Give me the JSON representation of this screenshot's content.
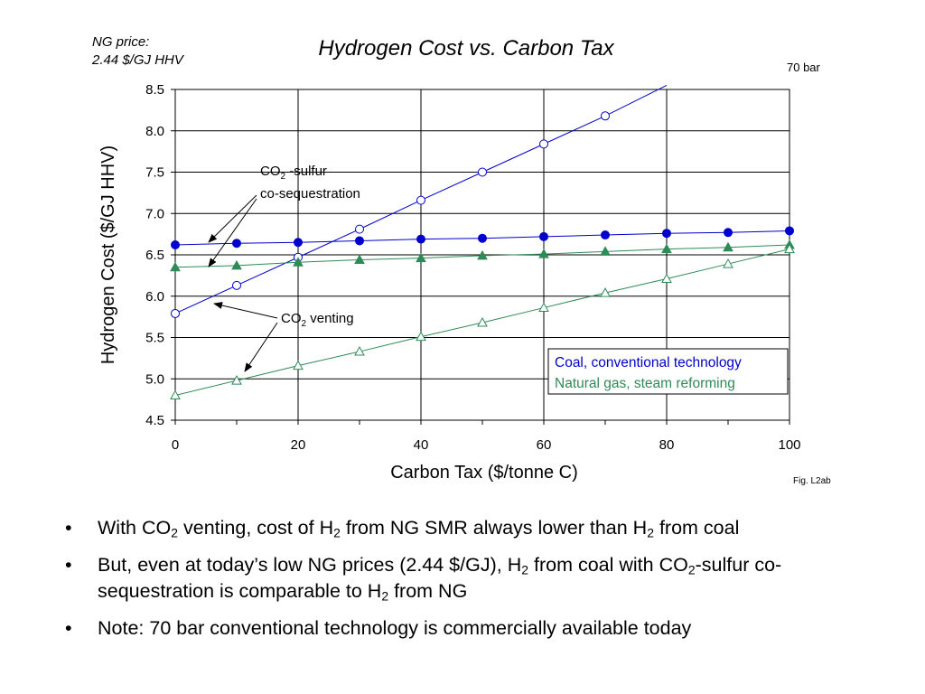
{
  "header": {
    "ng_price_line1": "NG price:",
    "ng_price_line2": "2.44 $/GJ HHV",
    "pressure_note": "70 bar",
    "fig_label": "Fig. L2ab"
  },
  "chart_data": {
    "type": "line",
    "title": "Hydrogen Cost vs. Carbon Tax",
    "xlabel": "Carbon Tax ($/tonne C)",
    "ylabel": "Hydrogen Cost ($/GJ HHV)",
    "xlim": [
      0,
      100
    ],
    "ylim": [
      4.5,
      8.5
    ],
    "xticks": [
      0,
      20,
      40,
      60,
      80,
      100
    ],
    "yticks": [
      4.5,
      5.0,
      5.5,
      6.0,
      6.5,
      7.0,
      7.5,
      8.0,
      8.5
    ],
    "ytick_labels": [
      "4.5",
      "5.0",
      "5.5",
      "6.0",
      "6.5",
      "7.0",
      "7.5",
      "8.0",
      "8.5"
    ],
    "grid": true,
    "legend_position": "lower-right",
    "legend": [
      {
        "label": "Coal, conventional technology",
        "color": "#0000cc"
      },
      {
        "label": "Natural gas, steam reforming",
        "color": "#2e8b57"
      }
    ],
    "series": [
      {
        "fuel": "coal",
        "case": "co-sequestration",
        "color": "#0000cc",
        "marker": "filled-circle",
        "x": [
          0,
          10,
          20,
          30,
          40,
          50,
          60,
          70,
          80,
          90,
          100
        ],
        "y": [
          6.62,
          6.64,
          6.65,
          6.67,
          6.69,
          6.7,
          6.72,
          6.74,
          6.76,
          6.77,
          6.79
        ]
      },
      {
        "fuel": "coal",
        "case": "venting",
        "color": "#0000cc",
        "marker": "open-circle",
        "x": [
          0,
          10,
          20,
          30,
          40,
          50,
          60,
          70
        ],
        "y": [
          5.79,
          6.13,
          6.47,
          6.81,
          7.16,
          7.5,
          7.84,
          8.18
        ],
        "line_extends_to": [
          80,
          8.55
        ]
      },
      {
        "fuel": "natural gas",
        "case": "co-sequestration",
        "color": "#2e8b57",
        "marker": "filled-triangle",
        "x": [
          0,
          10,
          20,
          30,
          40,
          50,
          60,
          70,
          80,
          90,
          100
        ],
        "y": [
          6.35,
          6.37,
          6.41,
          6.44,
          6.46,
          6.49,
          6.51,
          6.54,
          6.57,
          6.59,
          6.62
        ]
      },
      {
        "fuel": "natural gas",
        "case": "venting",
        "color": "#2e8b57",
        "marker": "open-triangle",
        "x": [
          0,
          10,
          20,
          30,
          40,
          50,
          60,
          70,
          80,
          90,
          100
        ],
        "y": [
          4.8,
          4.98,
          5.16,
          5.33,
          5.51,
          5.68,
          5.86,
          6.04,
          6.21,
          6.39,
          6.57
        ]
      }
    ],
    "annotations": {
      "seq_prefix": "CO",
      "seq_sub": "2",
      "seq_suffix": " -sulfur",
      "seq_line2": "co-sequestration",
      "vent_prefix": "CO",
      "vent_sub": "2",
      "vent_suffix": " venting"
    }
  },
  "bullets": [
    {
      "parts": [
        "With CO",
        "2",
        " venting, cost of H",
        "2",
        " from NG SMR always lower than H",
        "2",
        " from coal"
      ]
    },
    {
      "parts": [
        "But, even at today’s low NG prices (2.44 $/GJ), H",
        "2",
        " from coal with CO",
        "2",
        "-sulfur co-sequestration is comparable to H",
        "2",
        " from NG"
      ]
    },
    {
      "parts": [
        "Note: 70 bar conventional technology is commercially available today"
      ]
    }
  ],
  "bullet_symbol": "•"
}
